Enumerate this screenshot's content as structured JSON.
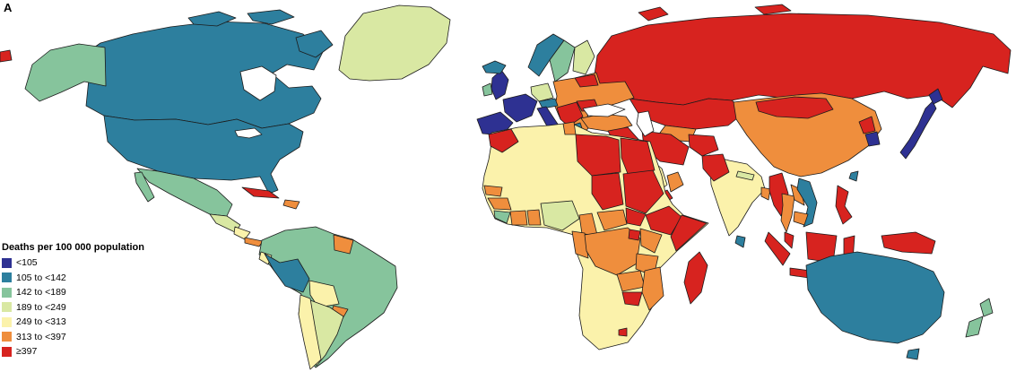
{
  "panel_label": "A",
  "legend": {
    "title": "Deaths per 100 000 population",
    "items": [
      {
        "label": "<105",
        "color": "#2e3192"
      },
      {
        "label": "105 to <142",
        "color": "#2d7f9e"
      },
      {
        "label": "142 to <189",
        "color": "#86c49c"
      },
      {
        "label": "189 to <249",
        "color": "#d9e8a3"
      },
      {
        "label": "249 to <313",
        "color": "#fbf2ab"
      },
      {
        "label": "313 to <397",
        "color": "#ef8e3d"
      },
      {
        "label": "≥397",
        "color": "#d7231f"
      }
    ]
  },
  "map": {
    "ocean_color": "#ffffff",
    "border_color": "#1c1c1c",
    "regions": {
      "russia": "≥397",
      "kazakhstan": "≥397",
      "uzbekistan-turkmenistan": "313 to <397",
      "east-europe": "313 to <397",
      "belarus": "≥397",
      "romania": "≥397",
      "balkans": "≥397",
      "greece": "105 to <142",
      "norway": "105 to <142",
      "sweden": "142 to <189",
      "finland": "189 to <249",
      "germany-central": "189 to <249",
      "central-europe": "105 to <142",
      "france": "<105",
      "iberia": "<105",
      "italy": "<105",
      "uk": "<105",
      "ireland": "142 to <189",
      "iceland": "105 to <142",
      "turkey": "313 to <397",
      "syria-iraq": "≥397",
      "iran": "≥397",
      "afghanistan": "≥397",
      "pakistan": "≥397",
      "saudi-arabia": "249 to <313",
      "yemen": "≥397",
      "oman": "313 to <397",
      "india": "249 to <313",
      "nepal": "189 to <249",
      "bangladesh": "313 to <397",
      "sri-lanka": "105 to <142",
      "china": "313 to <397",
      "mongolia": "≥397",
      "north-korea": "≥397",
      "south-korea": "<105",
      "japan": "<105",
      "taiwan": "105 to <142",
      "myanmar": "≥397",
      "thailand": "313 to <397",
      "laos": "313 to <397",
      "vietnam": "105 to <142",
      "cambodia": "313 to <397",
      "malaysia": "≥397",
      "indonesia": "≥397",
      "philippines": "≥397",
      "new-guinea": "≥397",
      "australia": "105 to <142",
      "new-zealand": "142 to <189",
      "africa-mainland": "249 to <313",
      "morocco": "≥397",
      "tunisia": "313 to <397",
      "libya": "≥397",
      "egypt": "≥397",
      "chad": "≥397",
      "sudan": "≥397",
      "south-sudan": "≥397",
      "ethiopia": "≥397",
      "somalia": "≥397",
      "senegal": "313 to <397",
      "guinea": "313 to <397",
      "sierra-leone-liberia": "142 to <189",
      "ivory-coast": "313 to <397",
      "ghana": "313 to <397",
      "nigeria": "189 to <249",
      "cameroon": "313 to <397",
      "central-african-republic": "313 to <397",
      "gabon-congo": "313 to <397",
      "drc": "313 to <397",
      "uganda": "≥397",
      "kenya": "313 to <397",
      "tanzania": "313 to <397",
      "zambia": "313 to <397",
      "zimbabwe": "≥397",
      "mozambique": "313 to <397",
      "lesotho": "≥397",
      "madagascar": "≥397",
      "canada": "105 to <142",
      "alaska": "142 to <189",
      "usa": "105 to <142",
      "greenland": "189 to <249",
      "mexico": "142 to <189",
      "guatemala": "189 to <249",
      "honduras-nicaragua": "249 to <313",
      "panama": "313 to <397",
      "cuba": "≥397",
      "hispaniola": "313 to <397",
      "south-america-mainland": "142 to <189",
      "peru": "105 to <142",
      "ecuador": "249 to <313",
      "bolivia": "249 to <313",
      "paraguay": "313 to <397",
      "chile": "249 to <313",
      "argentina": "189 to <249",
      "guyanas": "313 to <397"
    }
  }
}
